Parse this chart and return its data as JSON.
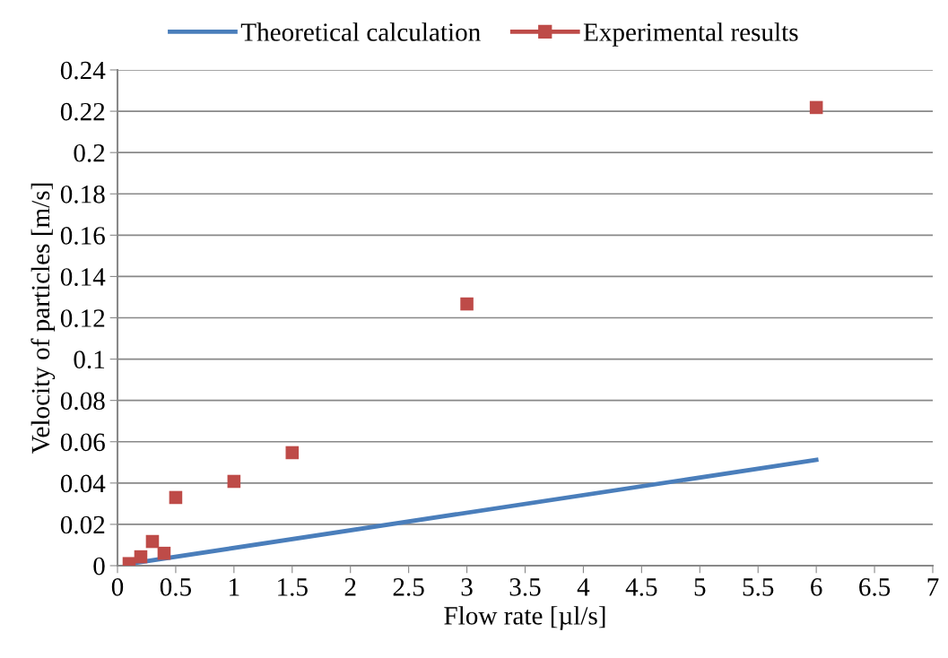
{
  "chart_data": {
    "type": "scatter",
    "xlabel": "Flow rate [µl/s]",
    "ylabel": "Velocity of particles [m/s]",
    "xlim": [
      0,
      7
    ],
    "xticks": [
      0,
      0.5,
      1,
      1.5,
      2,
      2.5,
      3,
      3.5,
      4,
      4.5,
      5,
      5.5,
      6,
      6.5,
      7
    ],
    "ylim": [
      0,
      0.24
    ],
    "yticks": [
      0,
      0.02,
      0.04,
      0.06,
      0.08,
      0.1,
      0.12,
      0.14,
      0.16,
      0.18,
      0.2,
      0.22,
      0.24
    ],
    "grid": "y",
    "legend": "top",
    "series": [
      {
        "name": "Theoretical calculation",
        "type": "line",
        "color": "#4a7ebb",
        "marker": "none",
        "x": [
          0.1,
          6
        ],
        "values": [
          0.0009,
          0.0512
        ]
      },
      {
        "name": "Experimental results",
        "color": "#be4b48",
        "marker": "square",
        "x": [
          0.1,
          0.2,
          0.3,
          0.4,
          0.5,
          1,
          1.5,
          3,
          6
        ],
        "values": [
          0.001,
          0.0043,
          0.0117,
          0.006,
          0.033,
          0.0408,
          0.0547,
          0.1267,
          0.2218
        ]
      }
    ]
  }
}
